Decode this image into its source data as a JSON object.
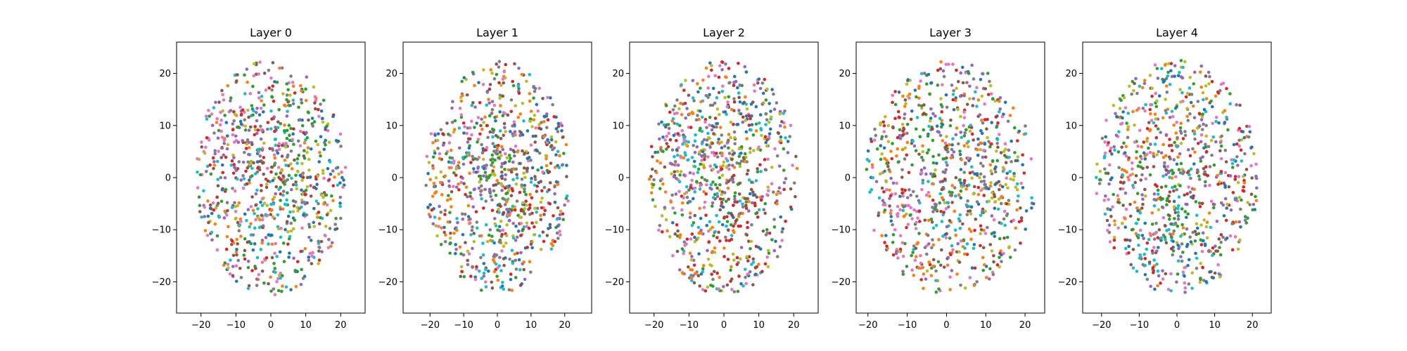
{
  "palette": [
    "#1f77b4",
    "#ff7f0e",
    "#2ca02c",
    "#d62728",
    "#9467bd",
    "#8c564b",
    "#e377c2",
    "#7f7f7f",
    "#bcbd22",
    "#17becf"
  ],
  "chart_data": [
    {
      "type": "scatter",
      "title": "Layer 0",
      "xlim": [
        -27,
        27
      ],
      "ylim": [
        -26,
        26
      ],
      "xticks": [
        -20,
        -10,
        0,
        10,
        20
      ],
      "yticks": [
        -20,
        -10,
        0,
        10,
        20
      ],
      "grid": false,
      "point_seed": 11,
      "n_points": 820,
      "cluster_centers": [
        [
          13,
          5
        ],
        [
          -9,
          -12
        ],
        [
          6,
          9
        ],
        [
          -6,
          4
        ],
        [
          -10,
          6
        ],
        [
          3,
          2
        ],
        [
          -12,
          8
        ],
        [
          -5,
          3
        ],
        [
          6,
          -3
        ],
        [
          -4,
          -6
        ]
      ]
    },
    {
      "type": "scatter",
      "title": "Layer 1",
      "xlim": [
        -28,
        28
      ],
      "ylim": [
        -26,
        26
      ],
      "xticks": [
        -20,
        -10,
        0,
        10,
        20
      ],
      "yticks": [
        -20,
        -10,
        0,
        10,
        20
      ],
      "grid": false,
      "point_seed": 23,
      "n_points": 820,
      "cluster_centers": [
        [
          14,
          7
        ],
        [
          -17,
          -3
        ],
        [
          -2,
          4
        ],
        [
          9,
          -8
        ],
        [
          -6,
          0
        ],
        [
          5,
          4
        ],
        [
          -10,
          5
        ],
        [
          -1,
          2
        ],
        [
          3,
          -5
        ],
        [
          1,
          -10
        ]
      ]
    },
    {
      "type": "scatter",
      "title": "Layer 2",
      "xlim": [
        -27,
        27
      ],
      "ylim": [
        -26,
        26
      ],
      "xticks": [
        -20,
        -10,
        0,
        10,
        20
      ],
      "yticks": [
        -20,
        -10,
        0,
        10,
        20
      ],
      "grid": false,
      "point_seed": 37,
      "n_points": 820,
      "cluster_centers": [
        [
          10,
          12
        ],
        [
          -10,
          -14
        ],
        [
          2,
          0
        ],
        [
          6,
          -12
        ],
        [
          -5,
          2
        ],
        [
          4,
          -2
        ],
        [
          -10,
          6
        ],
        [
          -3,
          8
        ],
        [
          1,
          4
        ],
        [
          -9,
          5
        ]
      ]
    },
    {
      "type": "scatter",
      "title": "Layer 3",
      "xlim": [
        -23,
        25
      ],
      "ylim": [
        -26,
        26
      ],
      "xticks": [
        -20,
        -10,
        0,
        10,
        20
      ],
      "yticks": [
        -20,
        -10,
        0,
        10,
        20
      ],
      "grid": false,
      "point_seed": 53,
      "n_points": 820,
      "cluster_centers": [
        [
          11,
          4
        ],
        [
          -1,
          -15
        ],
        [
          -3,
          8
        ],
        [
          -10,
          5
        ],
        [
          -5,
          2
        ],
        [
          4,
          -6
        ],
        [
          -13,
          -7
        ],
        [
          6,
          1
        ],
        [
          14,
          -2
        ],
        [
          1,
          -4
        ]
      ]
    },
    {
      "type": "scatter",
      "title": "Layer 4",
      "xlim": [
        -25,
        25
      ],
      "ylim": [
        -26,
        26
      ],
      "xticks": [
        -20,
        -10,
        0,
        10,
        20
      ],
      "yticks": [
        -20,
        -10,
        0,
        10,
        20
      ],
      "grid": false,
      "point_seed": 71,
      "n_points": 820,
      "cluster_centers": [
        [
          4,
          -12
        ],
        [
          -5,
          10
        ],
        [
          -2,
          -5
        ],
        [
          12,
          -2
        ],
        [
          1,
          3
        ],
        [
          -6,
          -4
        ],
        [
          -14,
          1
        ],
        [
          8,
          6
        ],
        [
          2,
          14
        ],
        [
          -4,
          -10
        ]
      ]
    }
  ]
}
